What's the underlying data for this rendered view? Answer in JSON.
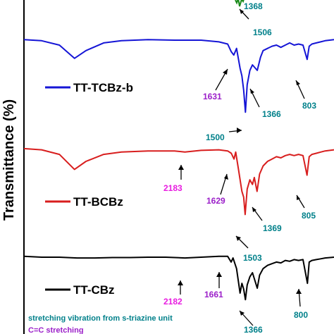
{
  "chart_data": {
    "type": "line",
    "ylabel": "Transmittance (%)",
    "grid": false,
    "series": [
      {
        "name": "TT-TCBz-b",
        "color": "#1515d6",
        "x": [
          4000,
          3800,
          3600,
          3430,
          3300,
          3100,
          2900,
          2600,
          2300,
          2000,
          1800,
          1700,
          1660,
          1631,
          1600,
          1560,
          1540,
          1520,
          1500,
          1480,
          1450,
          1420,
          1366,
          1330,
          1300,
          1250,
          1200,
          1150,
          1100,
          1050,
          1000,
          950,
          900,
          850,
          803,
          780,
          750,
          700,
          650,
          600,
          500
        ],
        "y": [
          96,
          95,
          91,
          79,
          86,
          93,
          95,
          96,
          95.5,
          95.5,
          94,
          92,
          85,
          82,
          88,
          70,
          63,
          50,
          30,
          55,
          68,
          73,
          68,
          80,
          86,
          88,
          90,
          91,
          89,
          91,
          93,
          91,
          92,
          91,
          78,
          90,
          92,
          93,
          94,
          95,
          96
        ]
      },
      {
        "name": "TT-BCBz",
        "color": "#d81e1e",
        "x": [
          4000,
          3800,
          3600,
          3430,
          3300,
          3100,
          2900,
          2600,
          2300,
          2183,
          2000,
          1800,
          1700,
          1660,
          1629,
          1610,
          1580,
          1540,
          1520,
          1503,
          1480,
          1450,
          1420,
          1400,
          1369,
          1340,
          1300,
          1250,
          1200,
          1150,
          1100,
          1050,
          1000,
          950,
          900,
          850,
          805,
          780,
          750,
          700,
          650,
          600,
          500
        ],
        "y": [
          97,
          96,
          92,
          79,
          86,
          92,
          94,
          95,
          95,
          94,
          95.5,
          96,
          95,
          93,
          88,
          94,
          80,
          60,
          55,
          40,
          62,
          70,
          66,
          72,
          60,
          75,
          82,
          86,
          88,
          90,
          89,
          91,
          92,
          91,
          92,
          91,
          74,
          90,
          92,
          93,
          94,
          95,
          96
        ]
      },
      {
        "name": "TT-CBz",
        "color": "#000000",
        "x": [
          4000,
          3800,
          3600,
          3400,
          3200,
          3000,
          2800,
          2600,
          2400,
          2182,
          2000,
          1800,
          1700,
          1661,
          1640,
          1600,
          1560,
          1540,
          1520,
          1500,
          1480,
          1450,
          1420,
          1366,
          1340,
          1300,
          1250,
          1200,
          1150,
          1100,
          1050,
          1000,
          950,
          900,
          850,
          800,
          780,
          750,
          700,
          650,
          600,
          500
        ],
        "y": [
          95,
          94,
          94,
          93,
          93,
          93.5,
          93.5,
          94,
          94,
          93,
          94,
          95,
          95,
          88,
          93,
          80,
          50,
          62,
          55,
          42,
          60,
          70,
          75,
          56,
          72,
          80,
          84,
          86,
          88,
          87,
          90,
          89,
          91,
          90,
          91,
          62,
          88,
          90,
          91,
          92,
          93,
          94
        ]
      }
    ],
    "annotations": [
      {
        "text": "1368",
        "color": "#00808a"
      },
      {
        "text": "1506",
        "color": "#00808a"
      },
      {
        "text": "1631",
        "color": "#9b1fc9"
      },
      {
        "text": "1366",
        "color": "#00808a"
      },
      {
        "text": "803",
        "color": "#00808a"
      },
      {
        "text": "1500",
        "color": "#00808a"
      },
      {
        "text": "2183",
        "color": "#e81ce0"
      },
      {
        "text": "1629",
        "color": "#9b1fc9"
      },
      {
        "text": "805",
        "color": "#00808a"
      },
      {
        "text": "1369",
        "color": "#00808a"
      },
      {
        "text": "1503",
        "color": "#00808a"
      },
      {
        "text": "2182",
        "color": "#e81ce0"
      },
      {
        "text": "1661",
        "color": "#9b1fc9"
      },
      {
        "text": "800",
        "color": "#00808a"
      },
      {
        "text": "1366",
        "color": "#00808a"
      }
    ],
    "notes": [
      {
        "text": "stretching vibration from s-triazine unit",
        "color": "#00808a"
      },
      {
        "text": "C=C stretching",
        "color": "#9b1fc9"
      }
    ]
  }
}
